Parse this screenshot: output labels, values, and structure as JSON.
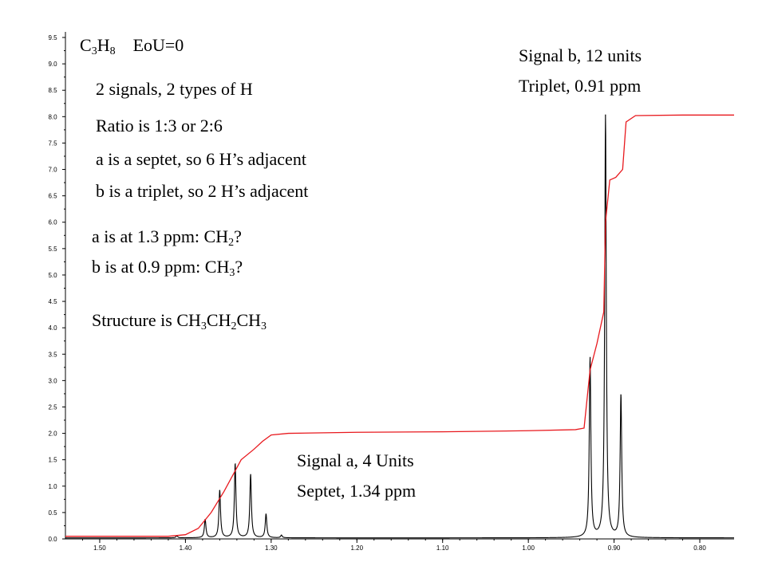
{
  "chart_data": {
    "type": "line",
    "title": "",
    "xlabel": "",
    "ylabel": "",
    "x_axis_reversed": true,
    "xlim": [
      1.54,
      0.76
    ],
    "ylim": [
      0.0,
      9.5
    ],
    "x_ticks": [
      "1.50",
      "1.40",
      "1.30",
      "1.20",
      "1.10",
      "1.00",
      "0.90",
      "0.80"
    ],
    "y_ticks": [
      "0.0",
      "0.5",
      "1.0",
      "1.5",
      "2.0",
      "2.5",
      "3.0",
      "3.5",
      "4.0",
      "4.5",
      "5.0",
      "5.5",
      "6.0",
      "6.5",
      "7.0",
      "7.5",
      "8.0",
      "8.5",
      "9.0",
      "9.5"
    ],
    "grid": false,
    "series": [
      {
        "role": "spectrum",
        "color": "#000000",
        "peaks": [
          {
            "ppm": 1.377,
            "height": 0.35
          },
          {
            "ppm": 1.36,
            "height": 0.9
          },
          {
            "ppm": 1.342,
            "height": 1.4
          },
          {
            "ppm": 1.324,
            "height": 1.2
          },
          {
            "ppm": 1.306,
            "height": 0.45
          },
          {
            "ppm": 1.288,
            "height": 0.05
          },
          {
            "ppm": 1.41,
            "height": 0.04
          },
          {
            "ppm": 0.928,
            "height": 3.4
          },
          {
            "ppm": 0.91,
            "height": 8.0
          },
          {
            "ppm": 0.892,
            "height": 2.7
          }
        ]
      },
      {
        "role": "integral",
        "color": "#e8191e",
        "points": [
          [
            1.54,
            0.05
          ],
          [
            1.42,
            0.05
          ],
          [
            1.4,
            0.08
          ],
          [
            1.385,
            0.2
          ],
          [
            1.37,
            0.5
          ],
          [
            1.355,
            0.9
          ],
          [
            1.345,
            1.2
          ],
          [
            1.335,
            1.5
          ],
          [
            1.32,
            1.7
          ],
          [
            1.31,
            1.85
          ],
          [
            1.3,
            1.97
          ],
          [
            1.28,
            2.0
          ],
          [
            1.2,
            2.02
          ],
          [
            1.1,
            2.03
          ],
          [
            1.0,
            2.05
          ],
          [
            0.945,
            2.07
          ],
          [
            0.935,
            2.1
          ],
          [
            0.928,
            3.2
          ],
          [
            0.92,
            3.7
          ],
          [
            0.912,
            4.3
          ],
          [
            0.91,
            6.0
          ],
          [
            0.905,
            6.8
          ],
          [
            0.898,
            6.85
          ],
          [
            0.89,
            7.0
          ],
          [
            0.886,
            7.9
          ],
          [
            0.875,
            8.02
          ],
          [
            0.82,
            8.03
          ],
          [
            0.76,
            8.03
          ]
        ]
      }
    ],
    "annotations": {
      "formula": {
        "t1": "C",
        "s1": "3",
        "t2": "H",
        "s2": "8",
        "t3": "EoU=0"
      },
      "line_signals": "2 signals, 2 types of H",
      "line_ratio": "Ratio is 1:3 or 2:6",
      "line_septet": "a is a septet, so 6 H’s adjacent",
      "line_triplet": "b is a triplet, so 2 H’s adjacent",
      "line_a_ppm": {
        "t1": "a is at 1.3 ppm: CH",
        "s1": "2",
        "t2": "?"
      },
      "line_b_ppm": {
        "t1": "b is at 0.9 ppm: CH",
        "s1": "3",
        "t2": "?"
      },
      "structure": {
        "t1": "Structure is CH",
        "s1": "3",
        "t2": "CH",
        "s2": "2",
        "t3": "CH",
        "s3": "3"
      },
      "signal_b": {
        "line1": "Signal b, 12 units",
        "line2": "Triplet, 0.91 ppm"
      },
      "signal_a": {
        "line1": "Signal a, 4 Units",
        "line2": "Septet, 1.34 ppm"
      }
    }
  }
}
